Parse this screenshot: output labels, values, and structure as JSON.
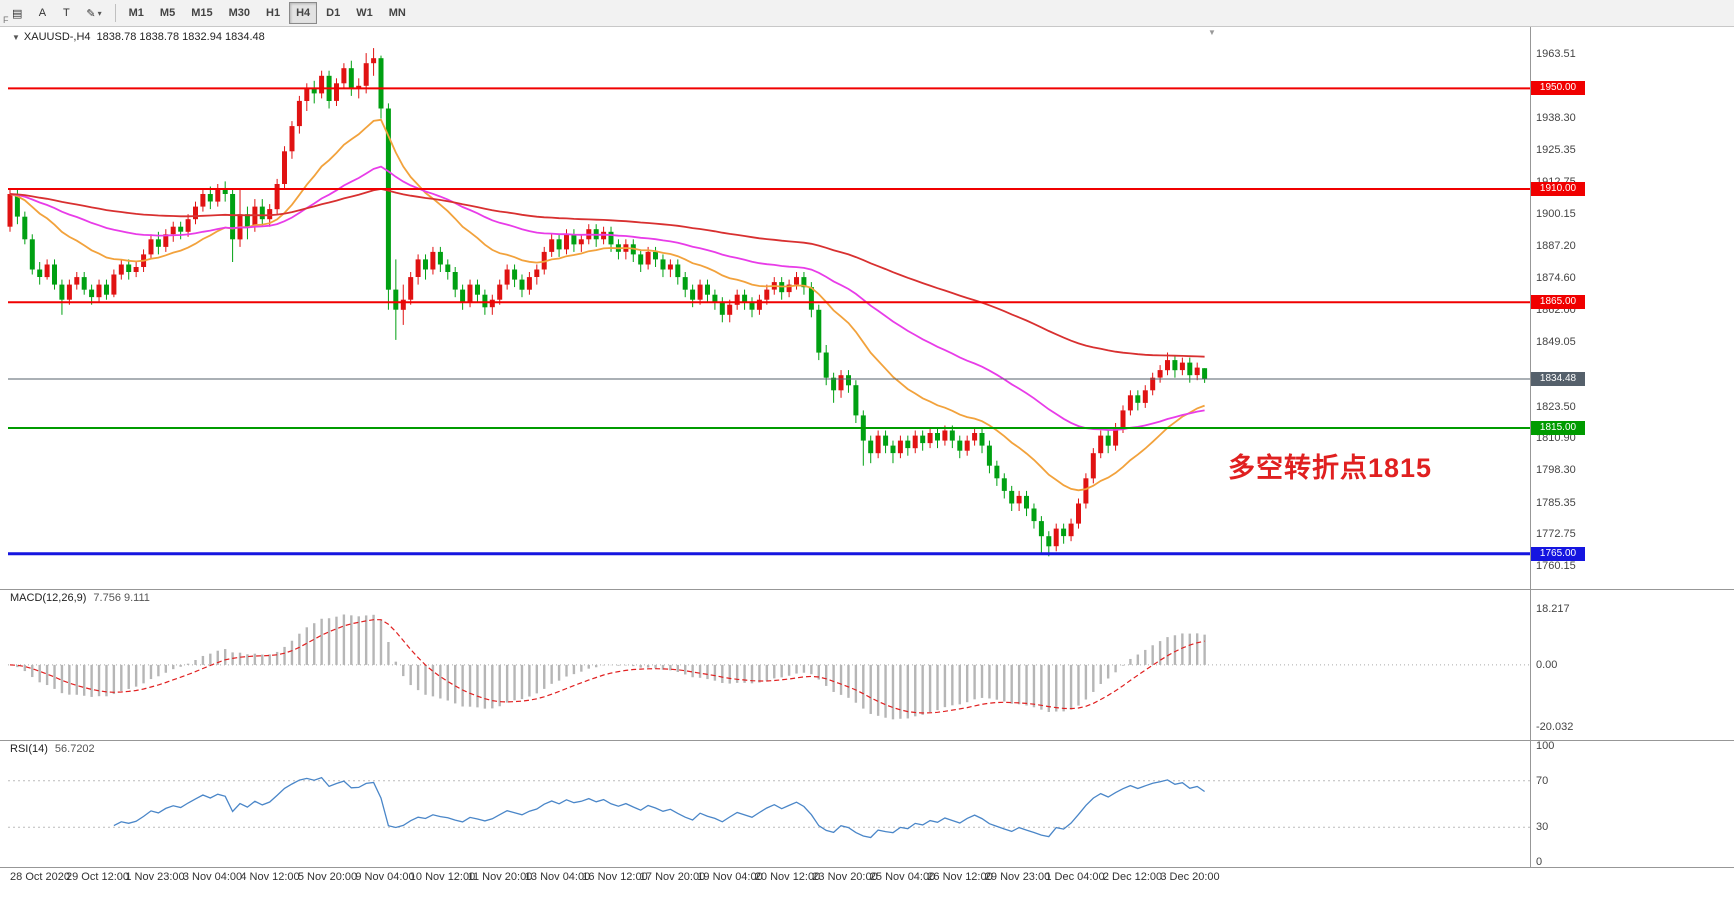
{
  "toolbar": {
    "icons": {
      "charts": "▤",
      "font": "A",
      "text": "T",
      "draw": "✎",
      "caret": "▾"
    },
    "timeframes": [
      "M1",
      "M5",
      "M15",
      "M30",
      "H1",
      "H4",
      "D1",
      "W1",
      "MN"
    ],
    "active_timeframe": "H4",
    "f_label": "F"
  },
  "chart_data": {
    "type": "candlestick",
    "title": "XAUUSD-,H4",
    "ohlc_text": "1838.78 1838.78 1832.94 1834.48",
    "last_ohlc": {
      "open": 1838.78,
      "high": 1838.78,
      "low": 1832.94,
      "close": 1834.48
    },
    "colors": {
      "up": "#e01212",
      "down": "#00a012"
    },
    "price_axis_ticks": [
      1963.51,
      1938.3,
      1925.35,
      1912.75,
      1900.15,
      1887.2,
      1874.6,
      1862.0,
      1849.05,
      1823.5,
      1810.9,
      1798.3,
      1785.35,
      1772.75,
      1760.15
    ],
    "hlines": [
      {
        "value": 1950.0,
        "label": "1950.00",
        "color": "#f00000",
        "width": 2
      },
      {
        "value": 1910.0,
        "label": "1910.00",
        "color": "#f00000",
        "width": 2
      },
      {
        "value": 1865.0,
        "label": "1865.00",
        "color": "#f00000",
        "width": 2
      },
      {
        "value": 1815.0,
        "label": "1815.00",
        "color": "#009b00",
        "width": 2
      },
      {
        "value": 1765.0,
        "label": "1765.00",
        "color": "#1515e0",
        "width": 3
      }
    ],
    "current_price": {
      "value": 1834.48,
      "label": "1834.48",
      "color": "#55606b"
    },
    "overlays": [
      {
        "name": "ma-fast",
        "period": 20,
        "color": "#f2a23c"
      },
      {
        "name": "ma-mid",
        "period": 50,
        "color": "#e83ce8"
      },
      {
        "name": "ma-slow",
        "period": 120,
        "color": "#d83030"
      }
    ],
    "indicators": [
      {
        "label": "MACD(12,26,9)",
        "values_text": "7.756 9.111",
        "axis_ticks": [
          {
            "value": 18.217,
            "label": "18.217"
          },
          {
            "value": 0,
            "label": "0.00"
          },
          {
            "value": -20.032,
            "label": "-20.032"
          }
        ],
        "hist_color": "#b6b6b6",
        "signal_color": "#e02020"
      },
      {
        "label": "RSI(14)",
        "values_text": "56.7202",
        "axis_ticks": [
          {
            "value": 100,
            "label": "100"
          },
          {
            "value": 70,
            "label": "70"
          },
          {
            "value": 30,
            "label": "30"
          },
          {
            "value": 0,
            "label": "0"
          }
        ],
        "levels": [
          70,
          30
        ],
        "color": "#4a86c8"
      }
    ],
    "time_labels": [
      "28 Oct 2020",
      "29 Oct 12:00",
      "1 Nov 23:00",
      "3 Nov 04:00",
      "4 Nov 12:00",
      "5 Nov 20:00",
      "9 Nov 04:00",
      "10 Nov 12:00",
      "11 Nov 20:00",
      "13 Nov 04:00",
      "16 Nov 12:00",
      "17 Nov 20:00",
      "19 Nov 04:00",
      "20 Nov 12:00",
      "23 Nov 20:00",
      "25 Nov 04:00",
      "26 Nov 12:00",
      "29 Nov 23:00",
      "1 Dec 04:00",
      "2 Dec 12:00",
      "3 Dec 20:00"
    ],
    "annotation": {
      "text": "多空转折点1815",
      "color": "#e02020"
    },
    "candles": [
      [
        1895,
        1910,
        1893,
        1908
      ],
      [
        1908,
        1910,
        1896,
        1899
      ],
      [
        1899,
        1901,
        1888,
        1890
      ],
      [
        1890,
        1892,
        1876,
        1878
      ],
      [
        1878,
        1881,
        1872,
        1875
      ],
      [
        1875,
        1882,
        1874,
        1880
      ],
      [
        1880,
        1882,
        1870,
        1872
      ],
      [
        1872,
        1874,
        1860,
        1866
      ],
      [
        1866,
        1874,
        1864,
        1872
      ],
      [
        1872,
        1877,
        1870,
        1875
      ],
      [
        1875,
        1877,
        1868,
        1870
      ],
      [
        1870,
        1872,
        1864,
        1867
      ],
      [
        1867,
        1874,
        1865,
        1872
      ],
      [
        1872,
        1874,
        1866,
        1868
      ],
      [
        1868,
        1878,
        1867,
        1876
      ],
      [
        1876,
        1882,
        1874,
        1880
      ],
      [
        1880,
        1882,
        1874,
        1877
      ],
      [
        1877,
        1881,
        1875,
        1879
      ],
      [
        1879,
        1886,
        1877,
        1884
      ],
      [
        1884,
        1892,
        1882,
        1890
      ],
      [
        1890,
        1893,
        1884,
        1887
      ],
      [
        1887,
        1894,
        1885,
        1892
      ],
      [
        1892,
        1897,
        1889,
        1895
      ],
      [
        1895,
        1897,
        1890,
        1893
      ],
      [
        1893,
        1900,
        1891,
        1898
      ],
      [
        1898,
        1905,
        1896,
        1903
      ],
      [
        1903,
        1910,
        1901,
        1908
      ],
      [
        1908,
        1911,
        1902,
        1905
      ],
      [
        1905,
        1912,
        1903,
        1910
      ],
      [
        1910,
        1913,
        1905,
        1908
      ],
      [
        1908,
        1910,
        1881,
        1890
      ],
      [
        1890,
        1910,
        1887,
        1900
      ],
      [
        1900,
        1903,
        1890,
        1895
      ],
      [
        1895,
        1906,
        1893,
        1903
      ],
      [
        1903,
        1906,
        1895,
        1898
      ],
      [
        1898,
        1904,
        1895,
        1902
      ],
      [
        1902,
        1914,
        1900,
        1912
      ],
      [
        1912,
        1927,
        1910,
        1925
      ],
      [
        1925,
        1937,
        1922,
        1935
      ],
      [
        1935,
        1947,
        1932,
        1945
      ],
      [
        1945,
        1952,
        1941,
        1950
      ],
      [
        1950,
        1953,
        1944,
        1948
      ],
      [
        1948,
        1957,
        1946,
        1955
      ],
      [
        1955,
        1957,
        1942,
        1945
      ],
      [
        1945,
        1954,
        1943,
        1952
      ],
      [
        1952,
        1960,
        1950,
        1958
      ],
      [
        1958,
        1961,
        1947,
        1950
      ],
      [
        1950,
        1954,
        1946,
        1951
      ],
      [
        1951,
        1964,
        1948,
        1960
      ],
      [
        1960,
        1966,
        1955,
        1962
      ],
      [
        1962,
        1963,
        1938,
        1942
      ],
      [
        1942,
        1944,
        1862,
        1870
      ],
      [
        1870,
        1882,
        1850,
        1862
      ],
      [
        1862,
        1872,
        1856,
        1866
      ],
      [
        1866,
        1877,
        1864,
        1875
      ],
      [
        1875,
        1884,
        1872,
        1882
      ],
      [
        1882,
        1884,
        1874,
        1878
      ],
      [
        1878,
        1887,
        1876,
        1885
      ],
      [
        1885,
        1887,
        1877,
        1880
      ],
      [
        1880,
        1882,
        1874,
        1877
      ],
      [
        1877,
        1879,
        1867,
        1870
      ],
      [
        1870,
        1872,
        1862,
        1865
      ],
      [
        1865,
        1874,
        1863,
        1872
      ],
      [
        1872,
        1874,
        1865,
        1868
      ],
      [
        1868,
        1870,
        1860,
        1863
      ],
      [
        1863,
        1868,
        1860,
        1866
      ],
      [
        1866,
        1874,
        1864,
        1872
      ],
      [
        1872,
        1880,
        1870,
        1878
      ],
      [
        1878,
        1880,
        1871,
        1874
      ],
      [
        1874,
        1876,
        1867,
        1870
      ],
      [
        1870,
        1877,
        1868,
        1875
      ],
      [
        1875,
        1880,
        1872,
        1878
      ],
      [
        1878,
        1887,
        1876,
        1885
      ],
      [
        1885,
        1892,
        1883,
        1890
      ],
      [
        1890,
        1892,
        1883,
        1886
      ],
      [
        1886,
        1894,
        1884,
        1892
      ],
      [
        1892,
        1894,
        1885,
        1888
      ],
      [
        1888,
        1892,
        1885,
        1890
      ],
      [
        1890,
        1896,
        1888,
        1894
      ],
      [
        1894,
        1896,
        1887,
        1890
      ],
      [
        1890,
        1895,
        1888,
        1893
      ],
      [
        1893,
        1895,
        1885,
        1888
      ],
      [
        1888,
        1890,
        1882,
        1885
      ],
      [
        1885,
        1890,
        1882,
        1888
      ],
      [
        1888,
        1890,
        1881,
        1884
      ],
      [
        1884,
        1886,
        1877,
        1880
      ],
      [
        1880,
        1887,
        1878,
        1885
      ],
      [
        1885,
        1887,
        1879,
        1882
      ],
      [
        1882,
        1884,
        1875,
        1878
      ],
      [
        1878,
        1882,
        1875,
        1880
      ],
      [
        1880,
        1882,
        1872,
        1875
      ],
      [
        1875,
        1877,
        1867,
        1870
      ],
      [
        1870,
        1872,
        1863,
        1866
      ],
      [
        1866,
        1874,
        1864,
        1872
      ],
      [
        1872,
        1874,
        1865,
        1868
      ],
      [
        1868,
        1870,
        1862,
        1865
      ],
      [
        1865,
        1867,
        1857,
        1860
      ],
      [
        1860,
        1866,
        1857,
        1864
      ],
      [
        1864,
        1870,
        1862,
        1868
      ],
      [
        1868,
        1870,
        1862,
        1865
      ],
      [
        1865,
        1867,
        1859,
        1862
      ],
      [
        1862,
        1868,
        1860,
        1866
      ],
      [
        1866,
        1872,
        1864,
        1870
      ],
      [
        1870,
        1875,
        1868,
        1873
      ],
      [
        1873,
        1875,
        1866,
        1869
      ],
      [
        1869,
        1874,
        1867,
        1872
      ],
      [
        1872,
        1877,
        1870,
        1875
      ],
      [
        1875,
        1877,
        1868,
        1871
      ],
      [
        1871,
        1873,
        1859,
        1862
      ],
      [
        1862,
        1864,
        1842,
        1845
      ],
      [
        1845,
        1848,
        1832,
        1835
      ],
      [
        1835,
        1837,
        1825,
        1830
      ],
      [
        1830,
        1838,
        1827,
        1836
      ],
      [
        1836,
        1838,
        1829,
        1832
      ],
      [
        1832,
        1834,
        1817,
        1820
      ],
      [
        1820,
        1822,
        1800,
        1810
      ],
      [
        1810,
        1812,
        1801,
        1805
      ],
      [
        1805,
        1814,
        1803,
        1812
      ],
      [
        1812,
        1814,
        1805,
        1808
      ],
      [
        1808,
        1810,
        1801,
        1805
      ],
      [
        1805,
        1812,
        1803,
        1810
      ],
      [
        1810,
        1812,
        1804,
        1807
      ],
      [
        1807,
        1814,
        1805,
        1812
      ],
      [
        1812,
        1814,
        1806,
        1809
      ],
      [
        1809,
        1815,
        1807,
        1813
      ],
      [
        1813,
        1815,
        1807,
        1810
      ],
      [
        1810,
        1816,
        1808,
        1814
      ],
      [
        1814,
        1816,
        1807,
        1810
      ],
      [
        1810,
        1812,
        1803,
        1806
      ],
      [
        1806,
        1812,
        1804,
        1810
      ],
      [
        1810,
        1815,
        1808,
        1813
      ],
      [
        1813,
        1815,
        1805,
        1808
      ],
      [
        1808,
        1810,
        1797,
        1800
      ],
      [
        1800,
        1802,
        1792,
        1795
      ],
      [
        1795,
        1797,
        1787,
        1790
      ],
      [
        1790,
        1792,
        1782,
        1785
      ],
      [
        1785,
        1790,
        1782,
        1788
      ],
      [
        1788,
        1790,
        1780,
        1783
      ],
      [
        1783,
        1785,
        1775,
        1778
      ],
      [
        1778,
        1780,
        1765,
        1772
      ],
      [
        1772,
        1774,
        1764,
        1768
      ],
      [
        1768,
        1777,
        1766,
        1775
      ],
      [
        1775,
        1777,
        1769,
        1772
      ],
      [
        1772,
        1779,
        1770,
        1777
      ],
      [
        1777,
        1787,
        1775,
        1785
      ],
      [
        1785,
        1797,
        1783,
        1795
      ],
      [
        1795,
        1807,
        1793,
        1805
      ],
      [
        1805,
        1814,
        1803,
        1812
      ],
      [
        1812,
        1814,
        1805,
        1808
      ],
      [
        1808,
        1817,
        1806,
        1815
      ],
      [
        1815,
        1824,
        1813,
        1822
      ],
      [
        1822,
        1830,
        1820,
        1828
      ],
      [
        1828,
        1830,
        1822,
        1825
      ],
      [
        1825,
        1832,
        1823,
        1830
      ],
      [
        1830,
        1837,
        1828,
        1835
      ],
      [
        1835,
        1840,
        1833,
        1838
      ],
      [
        1838,
        1845,
        1836,
        1842
      ],
      [
        1842,
        1844,
        1835,
        1838
      ],
      [
        1838,
        1843,
        1836,
        1841
      ],
      [
        1841,
        1843,
        1833,
        1836
      ],
      [
        1836,
        1841,
        1834,
        1839
      ],
      [
        1838.78,
        1838.78,
        1832.94,
        1834.48
      ]
    ]
  }
}
